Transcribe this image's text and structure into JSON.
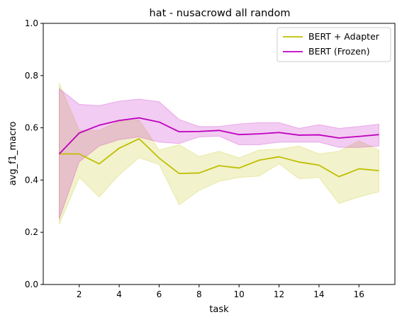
{
  "chart_data": {
    "type": "line",
    "title": "hat - nusacrowd all random",
    "xlabel": "task",
    "ylabel": "avg_f1_macro",
    "xlim": [
      0.2,
      17.8
    ],
    "ylim": [
      0.0,
      1.0
    ],
    "xticks": [
      2,
      4,
      6,
      8,
      10,
      12,
      14,
      16
    ],
    "yticks": [
      0.0,
      0.2,
      0.4,
      0.6,
      0.8,
      1.0
    ],
    "ytick_labels": [
      "0.0",
      "0.2",
      "0.4",
      "0.6",
      "0.8",
      "1.0"
    ],
    "grid": false,
    "legend_position": "top-right",
    "x": [
      1,
      2,
      3,
      4,
      5,
      6,
      7,
      8,
      9,
      10,
      11,
      12,
      13,
      14,
      15,
      16,
      17
    ],
    "series": [
      {
        "name": "BERT + Adapter",
        "color": "#bfbf00",
        "values": [
          0.5,
          0.5,
          0.462,
          0.522,
          0.558,
          0.484,
          0.425,
          0.427,
          0.455,
          0.446,
          0.476,
          0.489,
          0.469,
          0.457,
          0.413,
          0.443,
          0.436
        ],
        "lower": [
          0.23,
          0.41,
          0.335,
          0.42,
          0.485,
          0.46,
          0.305,
          0.36,
          0.395,
          0.41,
          0.415,
          0.462,
          0.405,
          0.41,
          0.31,
          0.335,
          0.355
        ],
        "upper": [
          0.77,
          0.59,
          0.59,
          0.625,
          0.63,
          0.515,
          0.535,
          0.49,
          0.51,
          0.485,
          0.515,
          0.518,
          0.53,
          0.5,
          0.51,
          0.55,
          0.515
        ]
      },
      {
        "name": "BERT (Frozen)",
        "color": "#bf00bf",
        "values": [
          0.5,
          0.58,
          0.61,
          0.628,
          0.638,
          0.622,
          0.585,
          0.586,
          0.59,
          0.574,
          0.577,
          0.582,
          0.572,
          0.573,
          0.561,
          0.567,
          0.574
        ],
        "lower": [
          0.25,
          0.47,
          0.53,
          0.555,
          0.565,
          0.545,
          0.54,
          0.565,
          0.568,
          0.535,
          0.535,
          0.545,
          0.545,
          0.545,
          0.525,
          0.525,
          0.53
        ],
        "upper": [
          0.75,
          0.69,
          0.685,
          0.702,
          0.71,
          0.7,
          0.632,
          0.605,
          0.605,
          0.615,
          0.62,
          0.62,
          0.598,
          0.612,
          0.598,
          0.605,
          0.614
        ]
      }
    ]
  }
}
